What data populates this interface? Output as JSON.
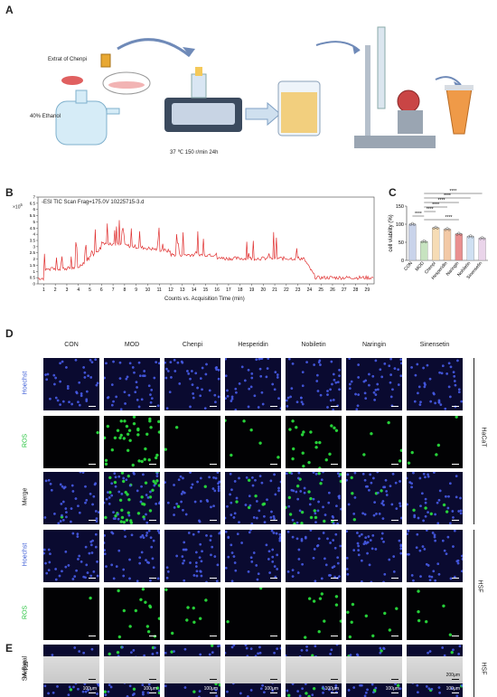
{
  "panelA": {
    "label": "A",
    "extract_label": "Extrat of Chenpi",
    "ethanol_label": "40% Ethanol",
    "conditions": "37 ℃   150 r/min  24h"
  },
  "panelB": {
    "label": "B",
    "header": "-ESI  TIC  Scan   Frag=175.0V  10225715-3.d",
    "y_multiplier": "×10",
    "y_exp": "5",
    "xlabel": "Counts vs. Acquisition Time (min)",
    "ytick_labels": [
      "0",
      "0.5",
      "1",
      "1.5",
      "2",
      "2.5",
      "3",
      "3.5",
      "4",
      "4.5",
      "5",
      "5.5",
      "6",
      "6.5",
      "7"
    ],
    "xtick_labels": [
      "1",
      "2",
      "3",
      "4",
      "5",
      "6",
      "7",
      "8",
      "9",
      "10",
      "11",
      "12",
      "13",
      "14",
      "15",
      "16",
      "17",
      "18",
      "19",
      "20",
      "21",
      "22",
      "23",
      "24",
      "25",
      "26",
      "27",
      "28",
      "29"
    ]
  },
  "chart_data": {
    "type": "bar",
    "title": "",
    "ylabel": "cell viability (%)",
    "ylim": [
      0,
      150
    ],
    "yticks": [
      "0",
      "50",
      "100",
      "150"
    ],
    "categories": [
      "CON",
      "MOD",
      "Chenpi",
      "Hesperidin",
      "Naringin",
      "Nobiletin",
      "Sinensetin"
    ],
    "values": [
      100,
      52,
      90,
      86,
      73,
      66,
      61
    ],
    "colors": [
      "#c9d3ea",
      "#c7e3c0",
      "#f6dcb5",
      "#f3c9a6",
      "#e98f8f",
      "#cfe0f2",
      "#ead4ea"
    ],
    "significance": "****"
  },
  "panelC": {
    "label": "C"
  },
  "panelD": {
    "label": "D",
    "columns": [
      "CON",
      "MOD",
      "Chenpi",
      "Hesperidin",
      "Nobiletin",
      "Naringin",
      "Sinensetin"
    ],
    "row_labels": [
      "Hoechst",
      "ROS",
      "Merge",
      "Hoechst",
      "ROS",
      "Merge"
    ],
    "group_labels": [
      "HaCaT",
      "HSF"
    ],
    "scale": "100μm",
    "colors": {
      "hoechst": "#3b5bd6",
      "ros": "#22c33a"
    }
  },
  "panelE": {
    "label": "E",
    "row_label": "SA-β-gal",
    "group_label": "HSF",
    "scale": "200μm"
  }
}
